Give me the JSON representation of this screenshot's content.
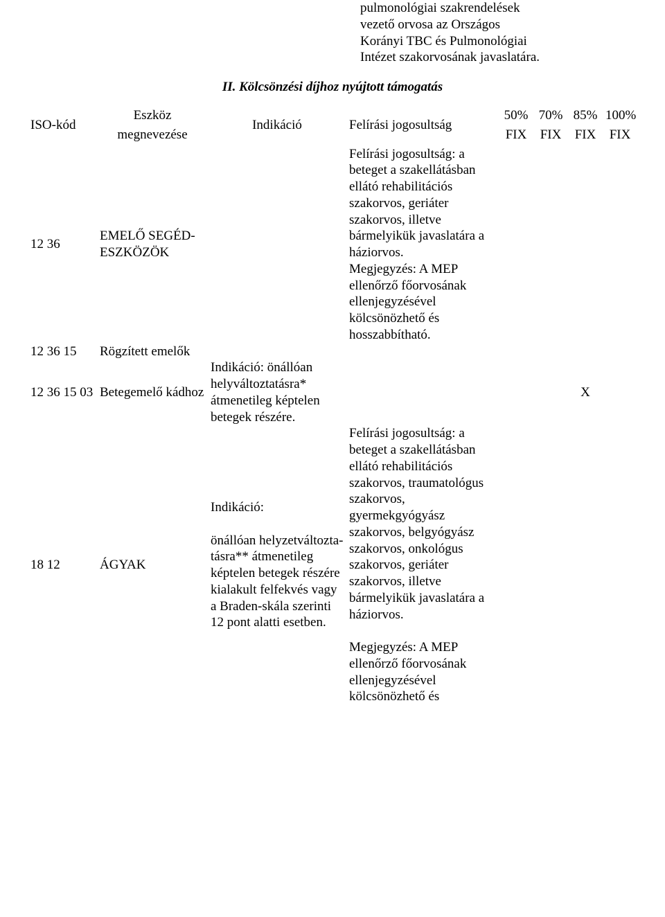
{
  "top_paragraph": "pulmonológiai szakrendelések vezető orvosa az Országos Korányi TBC és Pulmonológiai Intézet szakorvosának javaslatára.",
  "subtitle": "II. Kölcsönzési díjhoz nyújtott támogatás",
  "header": {
    "iso": "ISO-kód",
    "name_l1": "Eszköz",
    "name_l2": "megnevezése",
    "ind": "Indikáció",
    "jog": "Felírási jogosultság",
    "p50": "50%",
    "p70": "70%",
    "p85": "85%",
    "p100": "100%",
    "fix": "FIX"
  },
  "rows": {
    "r1": {
      "iso": "12 36",
      "name": "EMELŐ SEGÉD-ESZKÖZÖK",
      "jog": "Felírási jogosultság: a beteget a szakellátásban ellátó rehabilitációs szakorvos, geriáter szakorvos, illetve bármelyikük javaslatára a háziorvos.\nMegjegyzés: A MEP ellenőrző főorvosának ellenjegyzésével kölcsönözhető és hosszabbítható."
    },
    "r2": {
      "iso": "12 36 15",
      "name": "Rögzített emelők"
    },
    "r3": {
      "iso": "12 36 15 03",
      "name": "Betegemelő kádhoz",
      "ind": "Indikáció: önállóan helyváltoztatásra* átmenetileg képtelen betegek részére.",
      "mark": "X"
    },
    "r4": {
      "iso": "18 12",
      "name": "ÁGYAK",
      "ind": "Indikáció:\n\nönállóan helyzetváltozta-tásra** átmenetileg képtelen betegek részére kialakult felfekvés vagy a Braden-skála szerinti 12 pont alatti esetben.",
      "jog": "Felírási jogosultság: a beteget a szakellátásban ellátó rehabilitációs szakorvos, traumatológus szakorvos, gyermekgyógyász szakorvos, belgyógyász szakorvos, onkológus szakorvos, geriáter szakorvos, illetve bármelyikük javaslatára a háziorvos.\n\nMegjegyzés: A MEP ellenőrző főorvosának ellenjegyzésével kölcsönözhető és"
    }
  }
}
